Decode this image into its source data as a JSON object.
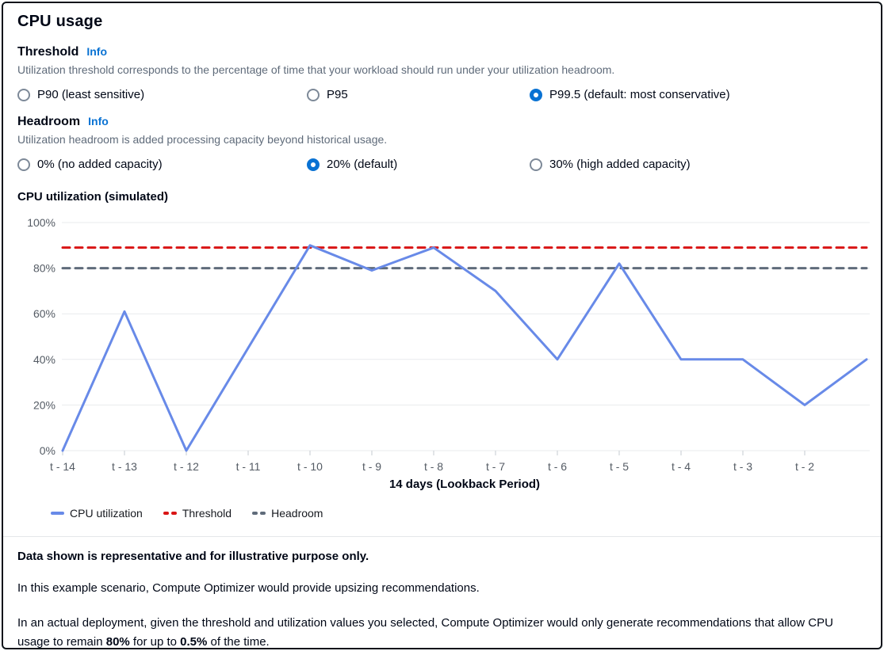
{
  "title": "CPU usage",
  "threshold": {
    "label": "Threshold",
    "info_label": "Info",
    "description": "Utilization threshold corresponds to the percentage of time that your workload should run under your utilization headroom.",
    "options": [
      {
        "label": "P90 (least sensitive)",
        "selected": false
      },
      {
        "label": "P95",
        "selected": false
      },
      {
        "label": "P99.5 (default: most conservative)",
        "selected": true
      }
    ]
  },
  "headroom": {
    "label": "Headroom",
    "info_label": "Info",
    "description": "Utilization headroom is added processing capacity beyond historical usage.",
    "options": [
      {
        "label": "0% (no added capacity)",
        "selected": false
      },
      {
        "label": "20% (default)",
        "selected": true
      },
      {
        "label": "30% (high added capacity)",
        "selected": false
      }
    ]
  },
  "chart_data": {
    "type": "line",
    "title": "CPU utilization (simulated)",
    "xlabel": "14 days (Lookback Period)",
    "ylabel": "",
    "ylim": [
      0,
      100
    ],
    "grid": true,
    "legend_position": "bottom-left",
    "y_ticks": [
      0,
      20,
      40,
      60,
      80,
      100
    ],
    "y_tick_labels": [
      "0%",
      "20%",
      "40%",
      "60%",
      "80%",
      "100%"
    ],
    "x_tick_labels": [
      "t - 14",
      "t - 13",
      "t - 12",
      "t - 11",
      "t - 10",
      "t - 9",
      "t - 8",
      "t - 7",
      "t - 6",
      "t - 5",
      "t - 4",
      "t - 3",
      "t - 2",
      ""
    ],
    "series": [
      {
        "name": "CPU utilization",
        "type": "line",
        "color": "#688ae8",
        "values": [
          0,
          61,
          0,
          45,
          90,
          79,
          89,
          70,
          40,
          82,
          40,
          40,
          20,
          40
        ]
      },
      {
        "name": "Threshold",
        "type": "hline",
        "style": "dashed",
        "color": "#d91515",
        "value": 89
      },
      {
        "name": "Headroom",
        "type": "hline",
        "style": "dashed",
        "color": "#5f6b7a",
        "value": 80
      }
    ],
    "legend": [
      "CPU utilization",
      "Threshold",
      "Headroom"
    ]
  },
  "footer": {
    "note": "Data shown is representative and for illustrative purpose only.",
    "p1": "In this example scenario, Compute Optimizer would provide upsizing recommendations.",
    "p2_prefix": "In an actual deployment, given the threshold and utilization values you selected, Compute Optimizer would only generate recommendations that allow CPU usage to remain ",
    "p2_bold1": "80%",
    "p2_mid": " for up to ",
    "p2_bold2": "0.5%",
    "p2_suffix": " of the time."
  },
  "colors": {
    "accent": "#0972d3",
    "cpu_line": "#688ae8",
    "threshold_line": "#d91515",
    "headroom_line": "#5f6b7a",
    "gridline": "#e9ebed",
    "axis_text": "#545b64"
  }
}
